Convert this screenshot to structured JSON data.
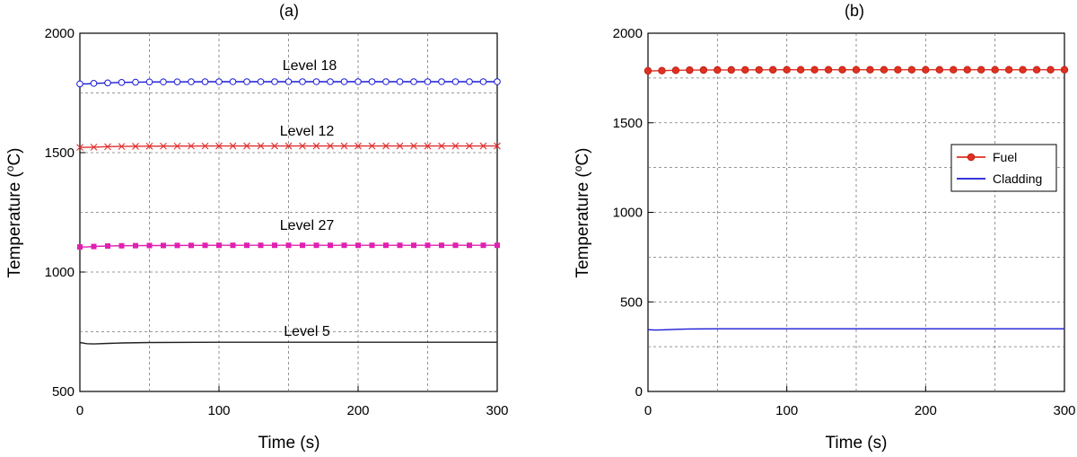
{
  "chart_data": [
    {
      "type": "line",
      "panel_label": "(a)",
      "xlabel": "Time (s)",
      "ylabel": "Temperature (",
      "ylabel_sup": "o",
      "ylabel_unit": "C)",
      "xlim": [
        0,
        300
      ],
      "ylim": [
        500,
        2000
      ],
      "xticks": [
        "0",
        "100",
        "200",
        "300"
      ],
      "yticks": [
        "500",
        "1000",
        "1500",
        "2000"
      ],
      "grid": true,
      "series": [
        {
          "name": "Level 18",
          "color": "#1a1ad6",
          "marker": "open-circle",
          "marker_every": 10,
          "x": [
            0,
            5,
            10,
            20,
            30,
            50,
            100,
            150,
            200,
            250,
            300
          ],
          "y": [
            1788,
            1788,
            1790,
            1792,
            1794,
            1796,
            1797,
            1797,
            1797,
            1797,
            1797
          ]
        },
        {
          "name": "Level 12",
          "color": "#e03030",
          "marker": "x",
          "marker_every": 10,
          "x": [
            0,
            5,
            10,
            20,
            30,
            50,
            100,
            150,
            200,
            250,
            300
          ],
          "y": [
            1522,
            1522,
            1523,
            1525,
            1526,
            1527,
            1528,
            1528,
            1528,
            1528,
            1528
          ]
        },
        {
          "name": "Level 27",
          "color": "#e020b0",
          "marker": "filled-square",
          "marker_every": 10,
          "x": [
            0,
            5,
            10,
            20,
            30,
            50,
            100,
            150,
            200,
            250,
            300
          ],
          "y": [
            1105,
            1105,
            1107,
            1109,
            1110,
            1111,
            1112,
            1112,
            1112,
            1112,
            1112
          ]
        },
        {
          "name": "Level 5",
          "color": "#222222",
          "marker": "none",
          "x": [
            0,
            5,
            10,
            20,
            30,
            50,
            100,
            150,
            200,
            250,
            300
          ],
          "y": [
            705,
            700,
            699,
            701,
            703,
            705,
            706,
            706,
            706,
            706,
            706
          ]
        }
      ],
      "annotations": [
        "Level 18",
        "Level 12",
        "Level 27",
        "Level 5"
      ]
    },
    {
      "type": "line",
      "panel_label": "(b)",
      "xlabel": "Time (s)",
      "ylabel": "Temperature (",
      "ylabel_sup": "o",
      "ylabel_unit": "C)",
      "xlim": [
        0,
        300
      ],
      "ylim": [
        0,
        2000
      ],
      "xticks": [
        "0",
        "100",
        "200",
        "300"
      ],
      "yticks": [
        "0",
        "500",
        "1000",
        "1500",
        "2000"
      ],
      "grid": true,
      "legend_position": "right-middle",
      "series": [
        {
          "name": "Fuel",
          "color": "#e03020",
          "marker": "filled-circle",
          "marker_every": 10,
          "x": [
            0,
            5,
            10,
            20,
            30,
            50,
            100,
            150,
            200,
            250,
            300
          ],
          "y": [
            1790,
            1790,
            1791,
            1793,
            1794,
            1795,
            1796,
            1796,
            1796,
            1796,
            1796
          ]
        },
        {
          "name": "Cladding",
          "color": "#1a1ad6",
          "marker": "none",
          "x": [
            0,
            5,
            10,
            20,
            30,
            50,
            100,
            150,
            200,
            250,
            300
          ],
          "y": [
            345,
            343,
            344,
            347,
            349,
            350,
            350,
            350,
            350,
            350,
            350
          ]
        }
      ]
    }
  ]
}
